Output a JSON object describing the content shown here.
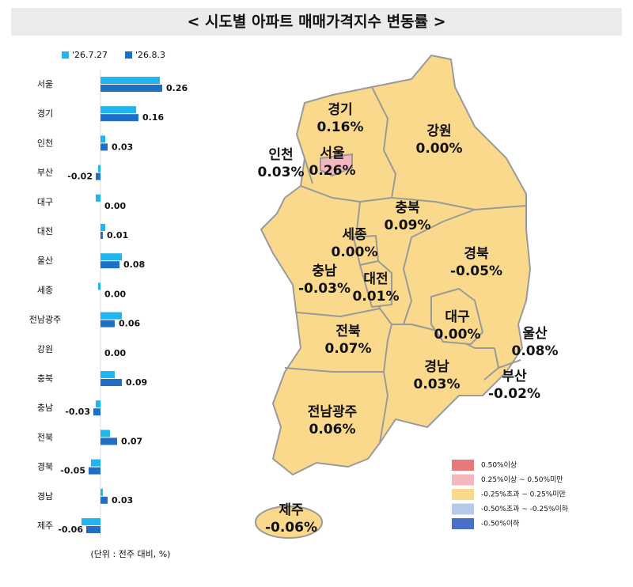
{
  "title": "< 시도별 아파트 매매가격지수 변동률 >",
  "chart_data": {
    "type": "bar",
    "orientation": "horizontal",
    "categories": [
      "서울",
      "경기",
      "인천",
      "부산",
      "대구",
      "대전",
      "울산",
      "세종",
      "전남광주",
      "강원",
      "충북",
      "충남",
      "전북",
      "경북",
      "경남",
      "제주"
    ],
    "series": [
      {
        "name": "'26.7.27",
        "color": "#1fb5ef",
        "values": [
          0.25,
          0.15,
          0.02,
          -0.01,
          -0.02,
          0.02,
          0.09,
          -0.01,
          0.09,
          0.0,
          0.06,
          -0.02,
          0.04,
          -0.04,
          0.01,
          -0.08
        ]
      },
      {
        "name": "'26.8.3",
        "color": "#1f6fc4",
        "values": [
          0.26,
          0.16,
          0.03,
          -0.02,
          0.0,
          0.01,
          0.08,
          0.0,
          0.06,
          0.0,
          0.09,
          -0.03,
          0.07,
          -0.05,
          0.03,
          -0.06
        ],
        "value_labels": [
          "0.26",
          "0.16",
          "0.03",
          "-0.02",
          "0.00",
          "0.01",
          "0.08",
          "0.00",
          "0.06",
          "0.00",
          "0.09",
          "-0.03",
          "0.07",
          "-0.05",
          "0.03",
          "-0.06"
        ]
      }
    ],
    "xlim": [
      -0.1,
      0.3
    ],
    "legend": "top-left"
  },
  "unit_note": "(단위 : 전주 대비, %)",
  "map": {
    "regions": [
      {
        "name": "경기",
        "value": "0.16%"
      },
      {
        "name": "강원",
        "value": "0.00%"
      },
      {
        "name": "인천",
        "value": "0.03%"
      },
      {
        "name": "서울",
        "value": "0.26%"
      },
      {
        "name": "충북",
        "value": "0.09%"
      },
      {
        "name": "세종",
        "value": "0.00%"
      },
      {
        "name": "경북",
        "value": "-0.05%"
      },
      {
        "name": "충남",
        "value": "-0.03%"
      },
      {
        "name": "대전",
        "value": "0.01%"
      },
      {
        "name": "대구",
        "value": "0.00%"
      },
      {
        "name": "전북",
        "value": "0.07%"
      },
      {
        "name": "울산",
        "value": "0.08%"
      },
      {
        "name": "부산",
        "value": "-0.02%"
      },
      {
        "name": "경남",
        "value": "0.03%"
      },
      {
        "name": "전남광주",
        "value": "0.06%"
      },
      {
        "name": "제주",
        "value": "-0.06%"
      }
    ],
    "legend": [
      {
        "label": "0.50%이상",
        "color": "#e8787a"
      },
      {
        "label": "0.25%이상 ~ 0.50%미만",
        "color": "#f4b6bf"
      },
      {
        "label": "-0.25%초과 ~ 0.25%미만",
        "color": "#fad98c"
      },
      {
        "label": "-0.50%초과 ~ -0.25%이하",
        "color": "#b8c8ea"
      },
      {
        "label": "-0.50%이하",
        "color": "#4a6fc7"
      }
    ]
  }
}
